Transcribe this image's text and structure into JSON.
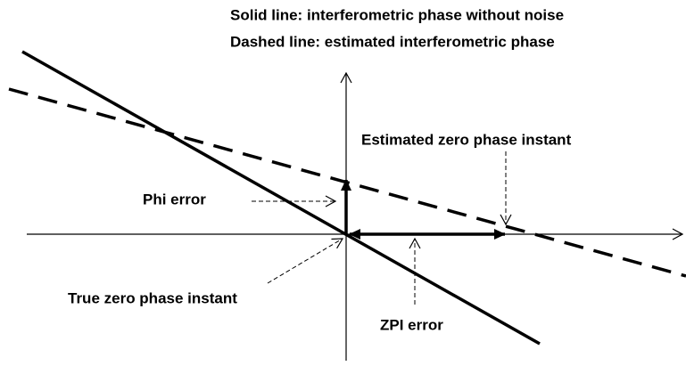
{
  "legend": {
    "solid": "Solid line: interferometric phase without noise",
    "dashed": "Dashed line: estimated interferometric phase"
  },
  "labels": {
    "estimated_zpi": "Estimated zero phase instant",
    "phi_error": "Phi error",
    "true_zpi": "True zero phase instant",
    "zpi_error": "ZPI error"
  }
}
